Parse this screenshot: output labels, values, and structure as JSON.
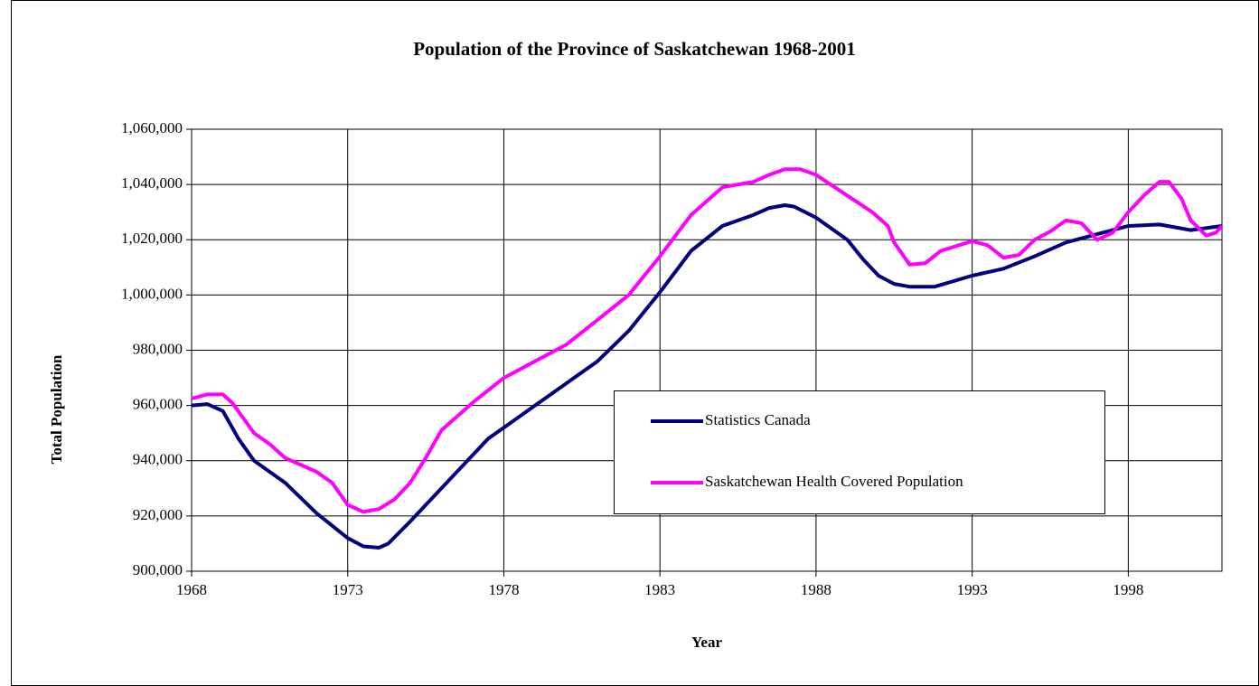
{
  "chart_data": {
    "type": "line",
    "title": "Population of the Province of Saskatchewan 1968-2001",
    "x_label": "Year",
    "y_label": "Total Population",
    "xlim": [
      1968,
      2001
    ],
    "xticks": [
      1968,
      1973,
      1978,
      1983,
      1988,
      1993,
      1998
    ],
    "ylim": [
      900000,
      1060000
    ],
    "yticks": [
      {
        "value": 900000,
        "label": "900,000"
      },
      {
        "value": 920000,
        "label": "920,000"
      },
      {
        "value": 940000,
        "label": "940,000"
      },
      {
        "value": 960000,
        "label": "960,000"
      },
      {
        "value": 980000,
        "label": "980,000"
      },
      {
        "value": 1000000,
        "label": "1,000,000"
      },
      {
        "value": 1020000,
        "label": "1,020,000"
      },
      {
        "value": 1040000,
        "label": "1,040,000"
      },
      {
        "value": 1060000,
        "label": "1,060,000"
      }
    ],
    "grid": true,
    "series": [
      {
        "name": "Statistics Canada",
        "color": "#000080",
        "x": [
          1968,
          1968.5,
          1969,
          1969.5,
          1970,
          1971,
          1972,
          1973,
          1973.5,
          1974,
          1974.3,
          1975,
          1976,
          1977,
          1977.5,
          1978,
          1979,
          1980,
          1981,
          1982,
          1983,
          1984,
          1985,
          1986,
          1986.5,
          1987,
          1987.3,
          1988,
          1989,
          1989.5,
          1990,
          1990.5,
          1991,
          1991.8,
          1993,
          1994,
          1995,
          1996,
          1997,
          1998,
          1999,
          2000,
          2001
        ],
        "values": [
          960000,
          960500,
          958000,
          948000,
          940000,
          932000,
          921000,
          912000,
          909000,
          908500,
          910000,
          918000,
          930000,
          942000,
          948000,
          952000,
          960000,
          968000,
          976000,
          987000,
          1001000,
          1016000,
          1025000,
          1029000,
          1031500,
          1032500,
          1032000,
          1028000,
          1020000,
          1013000,
          1007000,
          1004000,
          1003000,
          1003000,
          1007000,
          1009500,
          1014000,
          1019000,
          1022000,
          1025000,
          1025500,
          1023500,
          1025000
        ]
      },
      {
        "name": "Saskatchewan Health Covered Population",
        "color": "#ff00ff",
        "x": [
          1968,
          1968.5,
          1969,
          1969.3,
          1970,
          1970.5,
          1971,
          1972,
          1972.5,
          1973,
          1973.5,
          1974,
          1974.5,
          1975,
          1975.5,
          1976,
          1977,
          1978,
          1979,
          1980,
          1981,
          1982,
          1983,
          1984,
          1985,
          1986,
          1986.5,
          1987,
          1987.5,
          1988,
          1989,
          1989.8,
          1990.3,
          1990.5,
          1991,
          1991.5,
          1992,
          1993,
          1993.5,
          1994,
          1994.5,
          1995,
          1995.5,
          1996,
          1996.5,
          1997,
          1997.5,
          1998,
          1998.5,
          1999,
          1999.3,
          1999.7,
          2000,
          2000.5,
          2000.8,
          2001
        ],
        "values": [
          962500,
          964000,
          964000,
          961000,
          950000,
          946000,
          941000,
          936000,
          932000,
          924000,
          921500,
          922500,
          926000,
          932000,
          941000,
          951000,
          961000,
          970000,
          976000,
          982000,
          991000,
          1000000,
          1014000,
          1029000,
          1039000,
          1041000,
          1043500,
          1045500,
          1045500,
          1043500,
          1036000,
          1030000,
          1025000,
          1019000,
          1011000,
          1011500,
          1016000,
          1019500,
          1018000,
          1013500,
          1014500,
          1020000,
          1023000,
          1027000,
          1026000,
          1020000,
          1022500,
          1030000,
          1036000,
          1041000,
          1041000,
          1035000,
          1027000,
          1021500,
          1022500,
          1025000
        ]
      }
    ]
  }
}
